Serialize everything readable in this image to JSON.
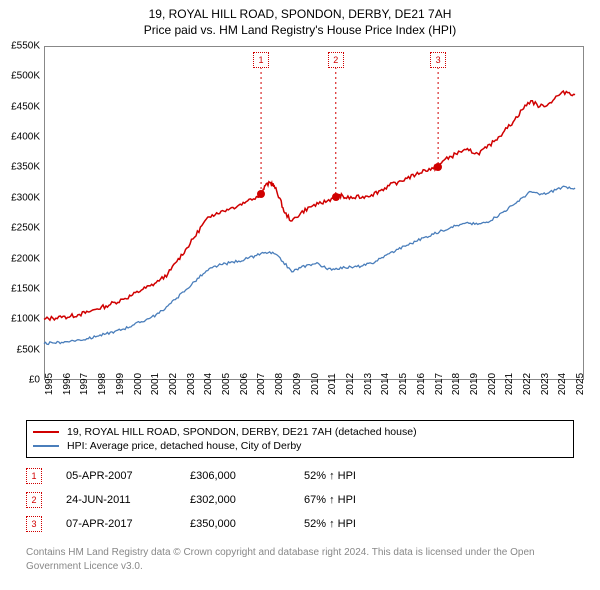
{
  "title_line1": "19, ROYAL HILL ROAD, SPONDON, DERBY, DE21 7AH",
  "title_line2": "Price paid vs. HM Land Registry's House Price Index (HPI)",
  "chart": {
    "type": "line",
    "background_color": "#ffffff",
    "border_color": "#888888",
    "ylim": [
      0,
      550000
    ],
    "ytick_step": 50000,
    "y_tick_labels": [
      "£0",
      "£50K",
      "£100K",
      "£150K",
      "£200K",
      "£250K",
      "£300K",
      "£350K",
      "£400K",
      "£450K",
      "£500K",
      "£550K"
    ],
    "xlim": [
      1995,
      2025.5
    ],
    "x_tick_years": [
      1995,
      1996,
      1997,
      1998,
      1999,
      2000,
      2001,
      2002,
      2003,
      2004,
      2005,
      2006,
      2007,
      2008,
      2009,
      2010,
      2011,
      2012,
      2013,
      2014,
      2015,
      2016,
      2017,
      2018,
      2019,
      2020,
      2021,
      2022,
      2023,
      2024,
      2025
    ],
    "label_fontsize": 10,
    "series": [
      {
        "key": "prop",
        "color": "#d00000",
        "width": 1.5,
        "points": [
          [
            1995.0,
            100000
          ],
          [
            1995.5,
            102000
          ],
          [
            1996.0,
            103000
          ],
          [
            1996.5,
            105000
          ],
          [
            1997.0,
            108000
          ],
          [
            1997.5,
            112000
          ],
          [
            1998.0,
            117000
          ],
          [
            1998.5,
            122000
          ],
          [
            1999.0,
            128000
          ],
          [
            1999.5,
            133000
          ],
          [
            2000.0,
            140000
          ],
          [
            2000.5,
            148000
          ],
          [
            2001.0,
            155000
          ],
          [
            2001.5,
            163000
          ],
          [
            2002.0,
            175000
          ],
          [
            2002.5,
            195000
          ],
          [
            2003.0,
            215000
          ],
          [
            2003.5,
            235000
          ],
          [
            2004.0,
            258000
          ],
          [
            2004.5,
            272000
          ],
          [
            2005.0,
            278000
          ],
          [
            2005.5,
            282000
          ],
          [
            2006.0,
            288000
          ],
          [
            2006.5,
            295000
          ],
          [
            2007.0,
            302000
          ],
          [
            2007.26,
            306000
          ],
          [
            2007.5,
            320000
          ],
          [
            2007.8,
            325000
          ],
          [
            2008.0,
            320000
          ],
          [
            2008.3,
            300000
          ],
          [
            2008.6,
            275000
          ],
          [
            2009.0,
            262000
          ],
          [
            2009.5,
            275000
          ],
          [
            2010.0,
            285000
          ],
          [
            2010.5,
            290000
          ],
          [
            2011.0,
            295000
          ],
          [
            2011.48,
            302000
          ],
          [
            2011.7,
            305000
          ],
          [
            2012.0,
            300000
          ],
          [
            2012.5,
            300000
          ],
          [
            2013.0,
            302000
          ],
          [
            2013.5,
            305000
          ],
          [
            2014.0,
            312000
          ],
          [
            2014.5,
            320000
          ],
          [
            2015.0,
            326000
          ],
          [
            2015.5,
            332000
          ],
          [
            2016.0,
            338000
          ],
          [
            2016.5,
            346000
          ],
          [
            2017.0,
            348000
          ],
          [
            2017.26,
            350000
          ],
          [
            2017.5,
            360000
          ],
          [
            2018.0,
            368000
          ],
          [
            2018.5,
            376000
          ],
          [
            2019.0,
            378000
          ],
          [
            2019.5,
            373000
          ],
          [
            2020.0,
            382000
          ],
          [
            2020.5,
            395000
          ],
          [
            2021.0,
            410000
          ],
          [
            2021.5,
            425000
          ],
          [
            2022.0,
            445000
          ],
          [
            2022.5,
            460000
          ],
          [
            2023.0,
            450000
          ],
          [
            2023.5,
            455000
          ],
          [
            2024.0,
            468000
          ],
          [
            2024.5,
            475000
          ],
          [
            2025.0,
            470000
          ]
        ]
      },
      {
        "key": "hpi",
        "color": "#4a7ebb",
        "width": 1.3,
        "points": [
          [
            1995.0,
            60000
          ],
          [
            1995.5,
            61000
          ],
          [
            1996.0,
            62000
          ],
          [
            1996.5,
            64000
          ],
          [
            1997.0,
            66000
          ],
          [
            1997.5,
            68000
          ],
          [
            1998.0,
            72000
          ],
          [
            1998.5,
            76000
          ],
          [
            1999.0,
            80000
          ],
          [
            1999.5,
            84000
          ],
          [
            2000.0,
            90000
          ],
          [
            2000.5,
            96000
          ],
          [
            2001.0,
            102000
          ],
          [
            2001.5,
            110000
          ],
          [
            2002.0,
            122000
          ],
          [
            2002.5,
            135000
          ],
          [
            2003.0,
            148000
          ],
          [
            2003.5,
            162000
          ],
          [
            2004.0,
            175000
          ],
          [
            2004.5,
            185000
          ],
          [
            2005.0,
            190000
          ],
          [
            2005.5,
            193000
          ],
          [
            2006.0,
            196000
          ],
          [
            2006.5,
            200000
          ],
          [
            2007.0,
            205000
          ],
          [
            2007.5,
            210000
          ],
          [
            2008.0,
            208000
          ],
          [
            2008.5,
            195000
          ],
          [
            2009.0,
            178000
          ],
          [
            2009.5,
            185000
          ],
          [
            2010.0,
            190000
          ],
          [
            2010.5,
            192000
          ],
          [
            2011.0,
            182000
          ],
          [
            2011.5,
            184000
          ],
          [
            2012.0,
            185000
          ],
          [
            2012.5,
            186000
          ],
          [
            2013.0,
            188000
          ],
          [
            2013.5,
            192000
          ],
          [
            2014.0,
            200000
          ],
          [
            2014.5,
            208000
          ],
          [
            2015.0,
            215000
          ],
          [
            2015.5,
            222000
          ],
          [
            2016.0,
            228000
          ],
          [
            2016.5,
            235000
          ],
          [
            2017.0,
            240000
          ],
          [
            2017.5,
            246000
          ],
          [
            2018.0,
            252000
          ],
          [
            2018.5,
            256000
          ],
          [
            2019.0,
            258000
          ],
          [
            2019.5,
            256000
          ],
          [
            2020.0,
            260000
          ],
          [
            2020.5,
            268000
          ],
          [
            2021.0,
            278000
          ],
          [
            2021.5,
            288000
          ],
          [
            2022.0,
            300000
          ],
          [
            2022.5,
            310000
          ],
          [
            2023.0,
            305000
          ],
          [
            2023.5,
            308000
          ],
          [
            2024.0,
            315000
          ],
          [
            2024.5,
            318000
          ],
          [
            2025.0,
            316000
          ]
        ]
      }
    ]
  },
  "sale_markers": [
    {
      "num": "1",
      "year": 2007.26,
      "value": 306000
    },
    {
      "num": "2",
      "year": 2011.48,
      "value": 302000
    },
    {
      "num": "3",
      "year": 2017.26,
      "value": 350000
    }
  ],
  "marker_dot_color": "#d00000",
  "marker_box_border": "#d00000",
  "marker_vline_color": "#d00000",
  "legend": [
    {
      "color": "#d00000",
      "label": "19, ROYAL HILL ROAD, SPONDON, DERBY, DE21 7AH (detached house)"
    },
    {
      "color": "#4a7ebb",
      "label": "HPI: Average price, detached house, City of Derby"
    }
  ],
  "sales": [
    {
      "num": "1",
      "date": "05-APR-2007",
      "price": "£306,000",
      "delta": "52% ↑ HPI"
    },
    {
      "num": "2",
      "date": "24-JUN-2011",
      "price": "£302,000",
      "delta": "67% ↑ HPI"
    },
    {
      "num": "3",
      "date": "07-APR-2017",
      "price": "£350,000",
      "delta": "52% ↑ HPI"
    }
  ],
  "footer": "Contains HM Land Registry data © Crown copyright and database right 2024. This data is licensed under the Open Government Licence v3.0."
}
